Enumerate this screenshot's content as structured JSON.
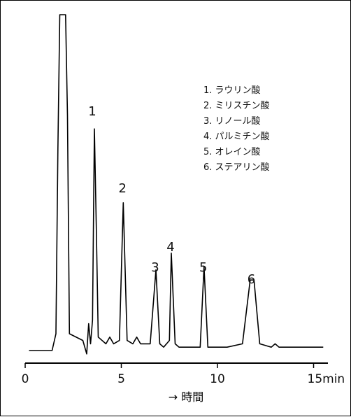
{
  "chart_data": {
    "type": "line",
    "xlabel": "→ 時間",
    "xlim": [
      0,
      16
    ],
    "x_ticks": [
      {
        "value": 0,
        "label": "0"
      },
      {
        "value": 5,
        "label": "5"
      },
      {
        "value": 10,
        "label": "10"
      },
      {
        "value": 15,
        "label": "15min"
      }
    ],
    "peak_labels": [
      {
        "label": "1",
        "x": 3.6
      },
      {
        "label": "2",
        "x": 5.1
      },
      {
        "label": "3",
        "x": 6.8
      },
      {
        "label": "4",
        "x": 7.6
      },
      {
        "label": "5",
        "x": 9.3
      },
      {
        "label": "6",
        "x": 11.8
      }
    ],
    "legend": [
      "1. ラウリン酸",
      "2. ミリスチン酸",
      "3. リノール酸",
      "4. パルミチン酸",
      "5. オレイン酸",
      "6. ステアリン酸"
    ],
    "series": [
      {
        "points": [
          [
            0.2,
            0.0
          ],
          [
            1.4,
            0.0
          ],
          [
            1.6,
            0.05
          ],
          [
            1.7,
            0.6
          ],
          [
            1.8,
            1.0
          ],
          [
            2.1,
            1.0
          ],
          [
            2.2,
            0.7
          ],
          [
            2.3,
            0.05
          ],
          [
            3.0,
            0.03
          ],
          [
            3.2,
            -0.01
          ],
          [
            3.3,
            0.08
          ],
          [
            3.4,
            0.02
          ],
          [
            3.5,
            0.09
          ],
          [
            3.6,
            0.66
          ],
          [
            3.7,
            0.36
          ],
          [
            3.8,
            0.04
          ],
          [
            4.2,
            0.02
          ],
          [
            4.4,
            0.04
          ],
          [
            4.6,
            0.02
          ],
          [
            4.9,
            0.03
          ],
          [
            5.1,
            0.44
          ],
          [
            5.3,
            0.03
          ],
          [
            5.6,
            0.02
          ],
          [
            5.8,
            0.04
          ],
          [
            6.0,
            0.02
          ],
          [
            6.5,
            0.02
          ],
          [
            6.8,
            0.24
          ],
          [
            7.0,
            0.02
          ],
          [
            7.2,
            0.01
          ],
          [
            7.5,
            0.03
          ],
          [
            7.6,
            0.29
          ],
          [
            7.8,
            0.02
          ],
          [
            8.0,
            0.01
          ],
          [
            9.1,
            0.01
          ],
          [
            9.3,
            0.25
          ],
          [
            9.5,
            0.01
          ],
          [
            10.5,
            0.01
          ],
          [
            11.3,
            0.02
          ],
          [
            11.7,
            0.21
          ],
          [
            11.9,
            0.21
          ],
          [
            12.2,
            0.02
          ],
          [
            12.8,
            0.01
          ],
          [
            13.0,
            0.02
          ],
          [
            13.2,
            0.01
          ],
          [
            15.5,
            0.01
          ]
        ]
      }
    ]
  }
}
